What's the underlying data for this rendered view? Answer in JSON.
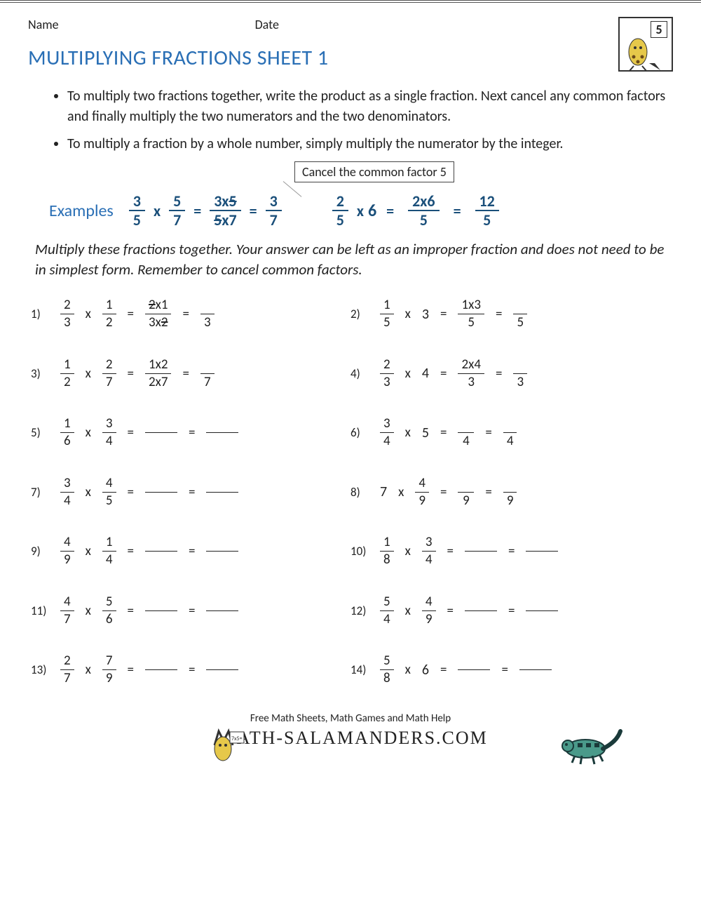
{
  "header": {
    "name": "Name",
    "date": "Date"
  },
  "logo_grade": "5",
  "title": "MULTIPLYING FRACTIONS SHEET 1",
  "colors": {
    "title": "#2a6fb5",
    "example": "#1a4f7a",
    "text": "#222222"
  },
  "bullets": [
    "To multiply two fractions together, write the product as a single fraction. Next cancel any common factors and finally multiply the two numerators and the two denominators.",
    "To multiply a fraction by a whole number, simply multiply the numerator by the integer."
  ],
  "callout": "Cancel the common factor 5",
  "examples_label": "Examples",
  "example1": {
    "a_n": "3",
    "a_d": "5",
    "b_n": "5",
    "b_d": "7",
    "step_n": "3x5",
    "step_d": "5x7",
    "res_n": "3",
    "res_d": "7"
  },
  "example2": {
    "a_n": "2",
    "a_d": "5",
    "whole": "6",
    "step_n": "2x6",
    "step_d": "5",
    "res_n": "12",
    "res_d": "5"
  },
  "instructions": "Multiply these fractions together. Your answer can be left as an improper fraction and does not need to be in simplest form. Remember to cancel common factors.",
  "problems": [
    {
      "num": "1)",
      "a_n": "2",
      "a_d": "3",
      "b_n": "1",
      "b_d": "2",
      "step_n": "2x1",
      "step_d": "3x2",
      "step_strike_n": true,
      "step_strike_d": true,
      "ans_d": "3"
    },
    {
      "num": "2)",
      "a_n": "1",
      "a_d": "5",
      "whole": "3",
      "step_n": "1x3",
      "step_d": "5",
      "ans_d": "5"
    },
    {
      "num": "3)",
      "a_n": "1",
      "a_d": "2",
      "b_n": "2",
      "b_d": "7",
      "step_n": "1x2",
      "step_d": "2x7",
      "ans_d": "7"
    },
    {
      "num": "4)",
      "a_n": "2",
      "a_d": "3",
      "whole": "4",
      "step_n": "2x4",
      "step_d": "3",
      "ans_d": "3"
    },
    {
      "num": "5)",
      "a_n": "1",
      "a_d": "6",
      "b_n": "3",
      "b_d": "4"
    },
    {
      "num": "6)",
      "a_n": "3",
      "a_d": "4",
      "whole": "5",
      "step_n": "",
      "step_d": "4",
      "ans_d": "4"
    },
    {
      "num": "7)",
      "a_n": "3",
      "a_d": "4",
      "b_n": "4",
      "b_d": "5"
    },
    {
      "num": "8)",
      "whole_left": "7",
      "b_n": "4",
      "b_d": "9",
      "step_n": "",
      "step_d": "9",
      "ans_d": "9"
    },
    {
      "num": "9)",
      "a_n": "4",
      "a_d": "9",
      "b_n": "1",
      "b_d": "4"
    },
    {
      "num": "10)",
      "a_n": "1",
      "a_d": "8",
      "b_n": "3",
      "b_d": "4"
    },
    {
      "num": "11)",
      "a_n": "4",
      "a_d": "7",
      "b_n": "5",
      "b_d": "6"
    },
    {
      "num": "12)",
      "a_n": "5",
      "a_d": "4",
      "b_n": "4",
      "b_d": "9"
    },
    {
      "num": "13)",
      "a_n": "2",
      "a_d": "7",
      "b_n": "7",
      "b_d": "9"
    },
    {
      "num": "14)",
      "a_n": "5",
      "a_d": "8",
      "whole": "6"
    }
  ],
  "footer": {
    "line1": "Free Math Sheets, Math Games and Math Help",
    "brand": "ATH-SALAMANDERS.COM"
  }
}
